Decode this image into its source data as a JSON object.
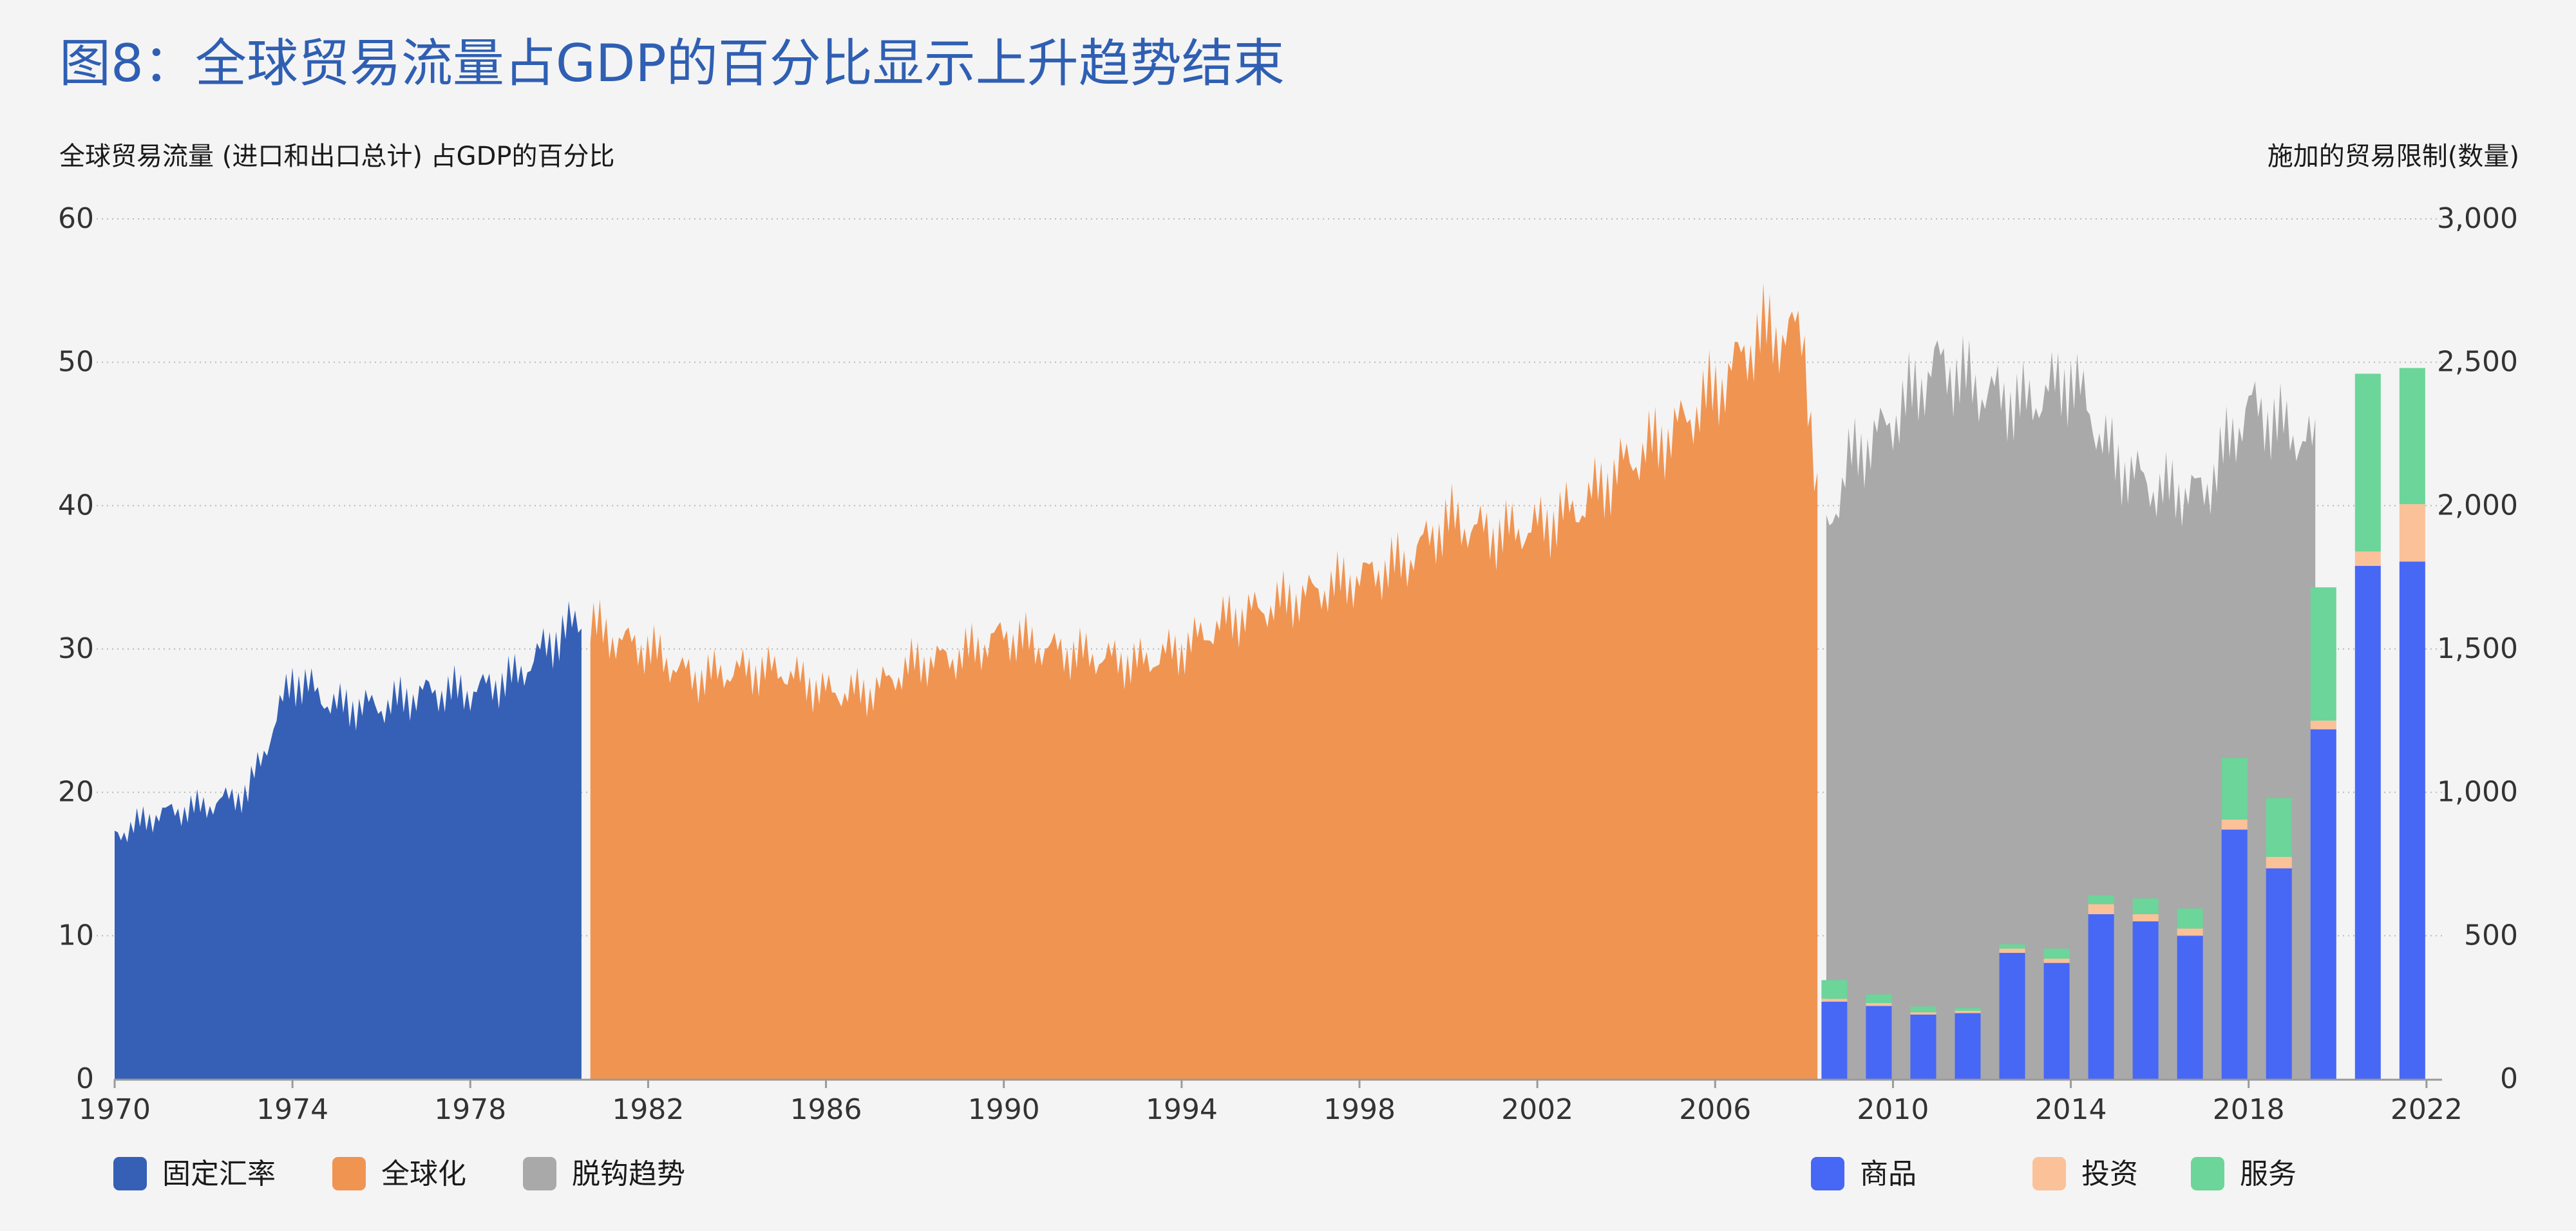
{
  "title": "图8：全球贸易流量占GDP的百分比显示上升趋势结束",
  "left_axis_label": "全球贸易流量 (进口和出口总计) 占GDP的百分比",
  "right_axis_label": "施加的贸易限制(数量)",
  "colors": {
    "fixed_rate": "#3560b6",
    "globalization": "#f09452",
    "decoupling": "#a9a9a9",
    "goods": "#4767f5",
    "investment": "#fbc199",
    "services": "#6bd59a",
    "title": "#2f5fb3"
  },
  "chart_data": {
    "type": "area+bar",
    "x_ticks": [
      "1970",
      "1974",
      "1978",
      "1982",
      "1986",
      "1990",
      "1994",
      "1998",
      "2002",
      "2006",
      "2010",
      "2014",
      "2018",
      "2022"
    ],
    "left_ylim": [
      0,
      60
    ],
    "left_ticks": [
      "0",
      "10",
      "20",
      "30",
      "40",
      "50",
      "60"
    ],
    "right_ylim": [
      0,
      3000
    ],
    "right_ticks": [
      "0",
      "500",
      "1,000",
      "1,500",
      "2,000",
      "2,500",
      "3,000"
    ],
    "grid": true,
    "legend_left": [
      {
        "key": "fixed_rate",
        "label": "固定汇率"
      },
      {
        "key": "globalization",
        "label": "全球化"
      },
      {
        "key": "decoupling",
        "label": "脱钩趋势"
      }
    ],
    "legend_right": [
      {
        "key": "goods",
        "label": "商品"
      },
      {
        "key": "investment",
        "label": "投资"
      },
      {
        "key": "services",
        "label": "服务"
      }
    ],
    "area_series": [
      {
        "key": "fixed_rate",
        "x": [
          1970,
          1971,
          1972,
          1973,
          1974,
          1975,
          1976,
          1977,
          1978,
          1979,
          1980,
          1980.5
        ],
        "y": [
          17,
          18.5,
          19,
          20,
          28,
          26,
          26,
          27,
          27,
          28,
          31,
          32
        ]
      },
      {
        "key": "globalization",
        "x": [
          1980.7,
          1981,
          1982,
          1983,
          1984,
          1985,
          1986,
          1987,
          1988,
          1989,
          1990,
          1991,
          1992,
          1993,
          1994,
          1995,
          1996,
          1997,
          1998,
          1999,
          2000,
          2001,
          2002,
          2003,
          2004,
          2005,
          2006,
          2007,
          2008,
          2008.3
        ],
        "y": [
          32,
          31,
          30,
          28,
          28.5,
          28.5,
          27,
          27,
          29,
          29.5,
          31,
          30,
          29.5,
          29,
          30,
          32,
          33,
          34,
          35,
          36,
          39,
          38,
          38.5,
          40,
          43,
          45,
          48,
          52,
          52,
          40
        ]
      },
      {
        "key": "decoupling",
        "x": [
          2008.5,
          2009,
          2010,
          2011,
          2012,
          2013,
          2014,
          2015,
          2016,
          2017,
          2018,
          2019,
          2019.5
        ],
        "y": [
          38,
          43,
          46,
          50,
          48,
          47,
          49,
          43,
          41,
          41,
          47,
          45,
          44
        ]
      }
    ],
    "bars": {
      "x": [
        2009,
        2010,
        2011,
        2012,
        2013,
        2014,
        2015,
        2016,
        2017,
        2018,
        2019,
        2020,
        2021,
        2022
      ],
      "goods": [
        270,
        255,
        225,
        230,
        440,
        405,
        575,
        550,
        500,
        870,
        735,
        1220,
        1790,
        1805
      ],
      "investment": [
        10,
        10,
        8,
        8,
        15,
        15,
        35,
        25,
        25,
        35,
        40,
        30,
        50,
        200
      ],
      "services": [
        65,
        30,
        20,
        10,
        15,
        35,
        30,
        55,
        70,
        215,
        205,
        465,
        620,
        475
      ]
    }
  }
}
